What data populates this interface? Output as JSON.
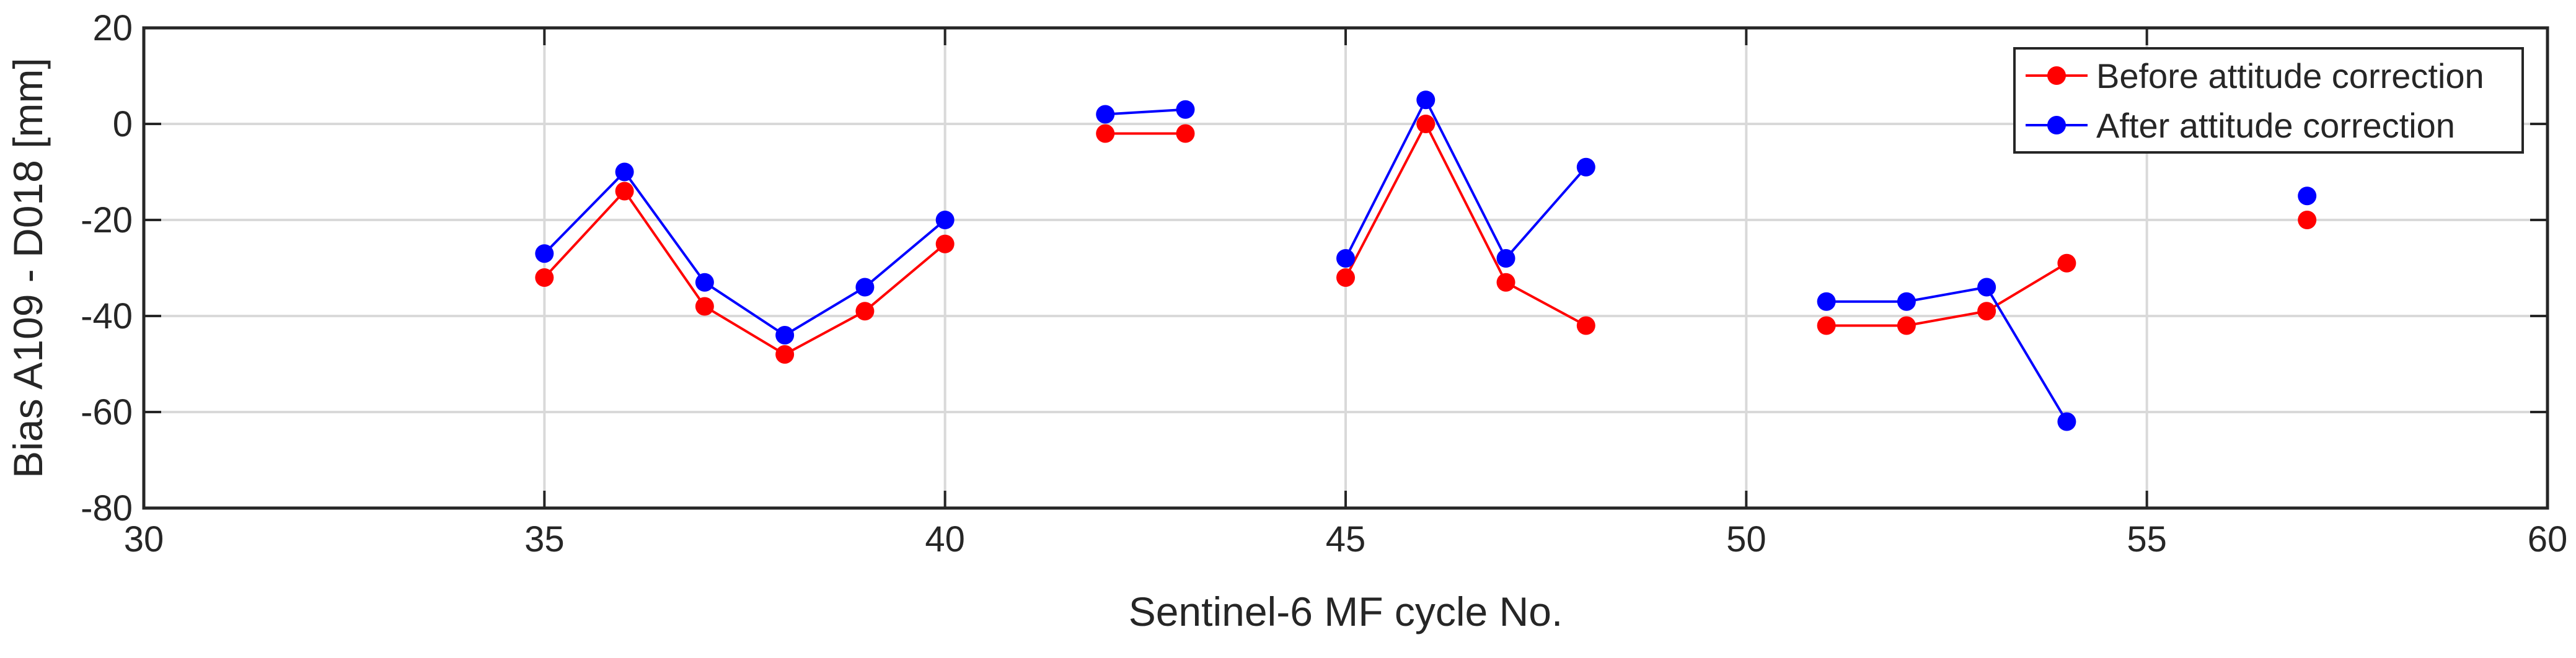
{
  "chart_data": {
    "type": "line",
    "title": "",
    "xlabel": "Sentinel-6 MF cycle No.",
    "ylabel": "Bias A109 - D018 [mm]",
    "xlim": [
      30,
      60
    ],
    "ylim": [
      -80,
      20
    ],
    "xticks": [
      "30",
      "35",
      "40",
      "45",
      "50",
      "55",
      "60"
    ],
    "yticks": [
      "20",
      "0",
      "-20",
      "-40",
      "-60",
      "-80"
    ],
    "grid": true,
    "legend_position": "top-right",
    "series": [
      {
        "name": "Before attitude correction",
        "color": "#ff0000",
        "segments": [
          {
            "x": [
              35,
              36,
              37,
              38,
              39,
              40
            ],
            "y": [
              -32,
              -14,
              -38,
              -48,
              -39,
              -25
            ]
          },
          {
            "x": [
              42,
              43
            ],
            "y": [
              -2,
              -2
            ]
          },
          {
            "x": [
              45,
              46,
              47,
              48
            ],
            "y": [
              -32,
              0,
              -33,
              -42
            ]
          },
          {
            "x": [
              51,
              52,
              53,
              54
            ],
            "y": [
              -42,
              -42,
              -39,
              -29
            ]
          },
          {
            "x": [
              57
            ],
            "y": [
              -20
            ]
          }
        ]
      },
      {
        "name": "After attitude correction",
        "color": "#0000ff",
        "segments": [
          {
            "x": [
              35,
              36,
              37,
              38,
              39,
              40
            ],
            "y": [
              -27,
              -10,
              -33,
              -44,
              -34,
              -20
            ]
          },
          {
            "x": [
              42,
              43
            ],
            "y": [
              2,
              3
            ]
          },
          {
            "x": [
              45,
              46,
              47,
              48
            ],
            "y": [
              -28,
              5,
              -28,
              -9
            ]
          },
          {
            "x": [
              51,
              52,
              53,
              54
            ],
            "y": [
              -37,
              -37,
              -34,
              -62
            ]
          },
          {
            "x": [
              57
            ],
            "y": [
              -15
            ]
          }
        ]
      }
    ]
  }
}
